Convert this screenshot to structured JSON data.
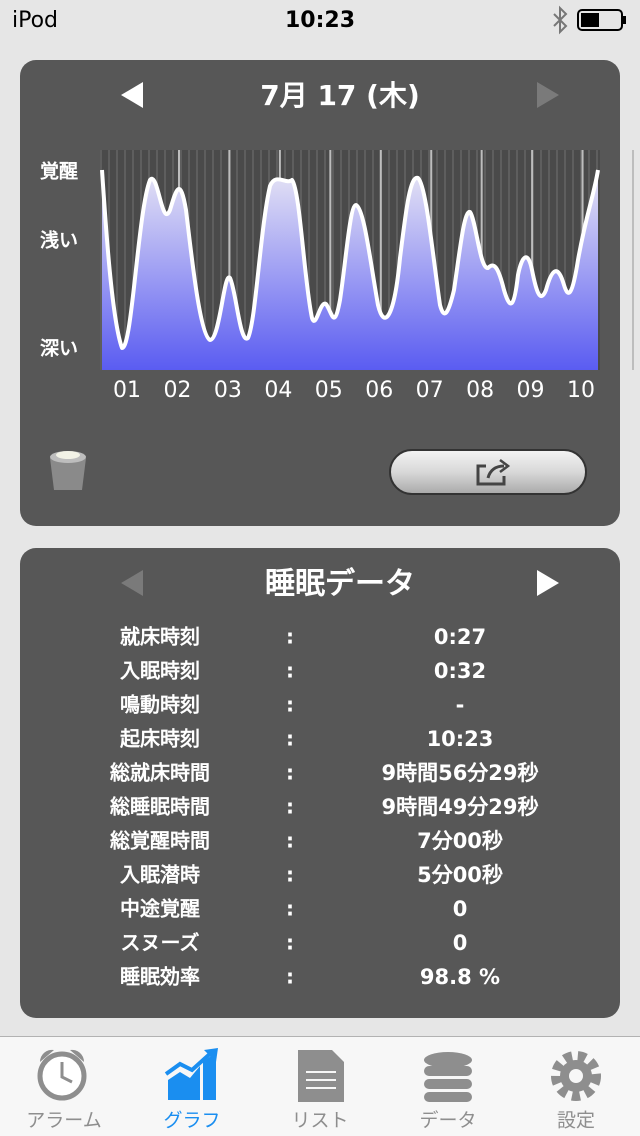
{
  "status_bar": {
    "carrier": "iPod",
    "time": "10:23"
  },
  "graph_panel": {
    "date": "7月 17 (木)",
    "y_labels": [
      "覚醒",
      "浅い",
      "深い"
    ],
    "x_labels": [
      "01",
      "02",
      "03",
      "04",
      "05",
      "06",
      "07",
      "08",
      "09",
      "10"
    ]
  },
  "sleep_data": {
    "title": "睡眠データ",
    "separator": ":",
    "rows": [
      {
        "label": "就床時刻",
        "value": "0:27"
      },
      {
        "label": "入眠時刻",
        "value": "0:32"
      },
      {
        "label": "鳴動時刻",
        "value": "-"
      },
      {
        "label": "起床時刻",
        "value": "10:23"
      },
      {
        "label": "総就床時間",
        "value": "9時間56分29秒"
      },
      {
        "label": "総睡眠時間",
        "value": "9時間49分29秒"
      },
      {
        "label": "総覚醒時間",
        "value": "7分00秒"
      },
      {
        "label": "入眠潜時",
        "value": "5分00秒"
      },
      {
        "label": "中途覚醒",
        "value": "0"
      },
      {
        "label": "スヌーズ",
        "value": "0"
      },
      {
        "label": "睡眠効率",
        "value": "98.8 %"
      }
    ]
  },
  "tab_bar": {
    "tabs": [
      "アラーム",
      "グラフ",
      "リスト",
      "データ",
      "設定"
    ],
    "selected": 1
  }
}
